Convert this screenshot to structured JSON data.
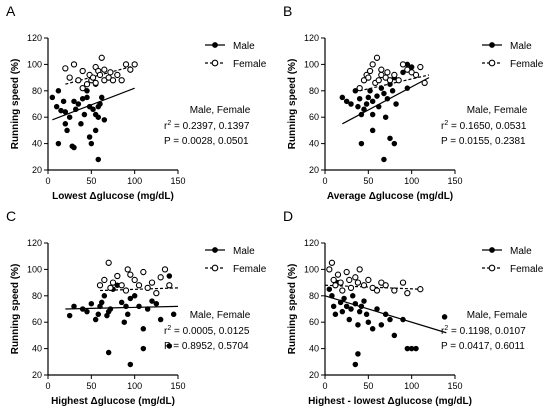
{
  "chart_data": [
    {
      "type": "scatter",
      "panel_label": "A",
      "xlabel": "Lowest Δglucose (mg/dL)",
      "ylabel": "Running speed (%)",
      "xlim": [
        0,
        150
      ],
      "ylim": [
        20,
        120
      ],
      "xticks": [
        0,
        50,
        100,
        150
      ],
      "yticks": [
        20,
        40,
        60,
        80,
        100,
        120
      ],
      "legend": [
        "Male",
        "Female"
      ],
      "stats": {
        "header": "Male, Female",
        "r2_label": "r",
        "r2_sup": "2",
        "r2_values": " = 0.2397, 0.1397",
        "p": "P = 0.0028, 0.0501"
      },
      "series": [
        {
          "name": "Male",
          "marker": "filled",
          "x": [
            5,
            10,
            12,
            15,
            18,
            20,
            22,
            25,
            28,
            30,
            32,
            35,
            38,
            40,
            42,
            45,
            45,
            48,
            50,
            50,
            52,
            55,
            55,
            58,
            58,
            60,
            62,
            65,
            12,
            20,
            30,
            48,
            55,
            58
          ],
          "y": [
            75,
            68,
            80,
            65,
            72,
            64,
            50,
            60,
            38,
            72,
            66,
            70,
            55,
            74,
            62,
            75,
            80,
            68,
            88,
            40,
            66,
            85,
            62,
            60,
            28,
            70,
            75,
            58,
            40,
            55,
            37,
            45,
            50,
            68
          ],
          "fit": [
            [
              5,
              58
            ],
            [
              100,
              82
            ]
          ]
        },
        {
          "name": "Female",
          "marker": "open",
          "x": [
            20,
            25,
            30,
            35,
            40,
            40,
            45,
            48,
            50,
            52,
            55,
            55,
            58,
            60,
            62,
            65,
            65,
            70,
            72,
            75,
            80,
            85,
            90,
            95,
            100
          ],
          "y": [
            97,
            90,
            100,
            88,
            95,
            82,
            85,
            92,
            88,
            90,
            98,
            86,
            95,
            92,
            105,
            88,
            96,
            90,
            94,
            88,
            92,
            88,
            100,
            96,
            100
          ],
          "fit": [
            [
              20,
              85
            ],
            [
              100,
              99
            ]
          ]
        }
      ]
    },
    {
      "type": "scatter",
      "panel_label": "B",
      "xlabel": "Average Δglucose (mg/dL)",
      "ylabel": "Running speed (%)",
      "xlim": [
        0,
        150
      ],
      "ylim": [
        20,
        120
      ],
      "xticks": [
        0,
        50,
        100,
        150
      ],
      "yticks": [
        20,
        40,
        60,
        80,
        100,
        120
      ],
      "legend": [
        "Male",
        "Female"
      ],
      "stats": {
        "header": "Male, Female",
        "r2_label": "r",
        "r2_sup": "2",
        "r2_values": " = 0.1650, 0.0531",
        "p": "P = 0.0155, 0.2381"
      },
      "series": [
        {
          "name": "Male",
          "marker": "filled",
          "x": [
            20,
            25,
            30,
            35,
            38,
            40,
            42,
            45,
            48,
            50,
            52,
            55,
            55,
            58,
            60,
            62,
            65,
            68,
            70,
            72,
            75,
            78,
            80,
            82,
            85,
            90,
            95,
            100,
            42,
            55,
            68,
            75,
            80,
            95
          ],
          "y": [
            75,
            72,
            70,
            80,
            68,
            74,
            62,
            66,
            70,
            75,
            80,
            72,
            62,
            86,
            76,
            68,
            82,
            78,
            60,
            74,
            85,
            80,
            90,
            70,
            88,
            94,
            100,
            98,
            40,
            50,
            28,
            44,
            40,
            82
          ],
          "fit": [
            [
              20,
              55
            ],
            [
              120,
              90
            ]
          ]
        },
        {
          "name": "Female",
          "marker": "open",
          "x": [
            40,
            45,
            48,
            50,
            52,
            55,
            58,
            60,
            62,
            65,
            65,
            70,
            72,
            75,
            80,
            85,
            90,
            95,
            100,
            105,
            110,
            115
          ],
          "y": [
            82,
            88,
            92,
            90,
            95,
            100,
            86,
            105,
            88,
            92,
            96,
            90,
            94,
            88,
            92,
            88,
            100,
            96,
            94,
            92,
            98,
            86
          ],
          "fit": [
            [
              40,
              80
            ],
            [
              120,
              92
            ]
          ]
        }
      ]
    },
    {
      "type": "scatter",
      "panel_label": "C",
      "xlabel": "Highest Δglucose (mg/dL)",
      "ylabel": "Running speed (%)",
      "xlim": [
        0,
        150
      ],
      "ylim": [
        20,
        120
      ],
      "xticks": [
        0,
        50,
        100,
        150
      ],
      "yticks": [
        20,
        40,
        60,
        80,
        100,
        120
      ],
      "legend": [
        "Male",
        "Female"
      ],
      "stats": {
        "header": "Male, Female",
        "r2_label": "r",
        "r2_sup": "2",
        "r2_values": " = 0.0005, 0.0125",
        "p": "P = 0.8952, 0.5704"
      },
      "series": [
        {
          "name": "Male",
          "marker": "filled",
          "x": [
            25,
            30,
            40,
            45,
            50,
            55,
            58,
            60,
            62,
            65,
            68,
            70,
            72,
            75,
            80,
            85,
            88,
            90,
            92,
            95,
            100,
            105,
            110,
            115,
            120,
            125,
            130,
            135,
            140,
            145,
            70,
            95,
            110,
            140
          ],
          "y": [
            65,
            72,
            70,
            68,
            74,
            62,
            66,
            72,
            75,
            80,
            65,
            68,
            70,
            85,
            88,
            75,
            60,
            72,
            66,
            78,
            80,
            72,
            55,
            70,
            76,
            74,
            62,
            100,
            95,
            66,
            37,
            28,
            40,
            42
          ],
          "fit": [
            [
              20,
              70
            ],
            [
              150,
              72
            ]
          ]
        },
        {
          "name": "Female",
          "marker": "open",
          "x": [
            60,
            65,
            70,
            72,
            75,
            80,
            85,
            90,
            92,
            95,
            100,
            105,
            110,
            115,
            120,
            125,
            130,
            135,
            140
          ],
          "y": [
            88,
            92,
            105,
            86,
            90,
            95,
            88,
            84,
            100,
            96,
            92,
            88,
            98,
            86,
            90,
            82,
            94,
            100,
            88
          ],
          "fit": [
            [
              60,
              84
            ],
            [
              150,
              86
            ]
          ]
        }
      ]
    },
    {
      "type": "scatter",
      "panel_label": "D",
      "xlabel": "Highest - lowest Δglucose (mg/dL)",
      "ylabel": "Running speed (%)",
      "xlim": [
        0,
        150
      ],
      "ylim": [
        20,
        120
      ],
      "xticks": [
        0,
        50,
        100,
        150
      ],
      "yticks": [
        20,
        40,
        60,
        80,
        100,
        120
      ],
      "legend": [
        "Male",
        "Female"
      ],
      "stats": {
        "header": "Male, Female",
        "r2_label": "r",
        "r2_sup": "2",
        "r2_values": " = 0.1198, 0.0107",
        "p": "P = 0.0417, 0.6011"
      },
      "series": [
        {
          "name": "Male",
          "marker": "filled",
          "x": [
            5,
            8,
            10,
            12,
            15,
            18,
            20,
            22,
            25,
            28,
            30,
            32,
            35,
            38,
            40,
            42,
            45,
            48,
            50,
            55,
            60,
            65,
            70,
            75,
            80,
            90,
            100,
            35,
            38,
            95,
            105,
            138
          ],
          "y": [
            85,
            80,
            72,
            66,
            90,
            75,
            68,
            78,
            72,
            62,
            70,
            80,
            74,
            58,
            68,
            72,
            76,
            66,
            60,
            55,
            70,
            58,
            66,
            62,
            50,
            62,
            40,
            28,
            36,
            40,
            40,
            64
          ],
          "fit": [
            [
              0,
              80
            ],
            [
              140,
              52
            ]
          ]
        },
        {
          "name": "Female",
          "marker": "open",
          "x": [
            5,
            8,
            10,
            12,
            15,
            18,
            20,
            25,
            28,
            30,
            35,
            38,
            40,
            45,
            50,
            55,
            60,
            65,
            70,
            80,
            90,
            95,
            110
          ],
          "y": [
            100,
            105,
            92,
            88,
            96,
            90,
            84,
            98,
            92,
            86,
            94,
            90,
            100,
            88,
            92,
            86,
            84,
            90,
            88,
            84,
            90,
            82,
            85
          ],
          "fit": [
            [
              0,
              88
            ],
            [
              110,
              85
            ]
          ]
        }
      ]
    }
  ]
}
